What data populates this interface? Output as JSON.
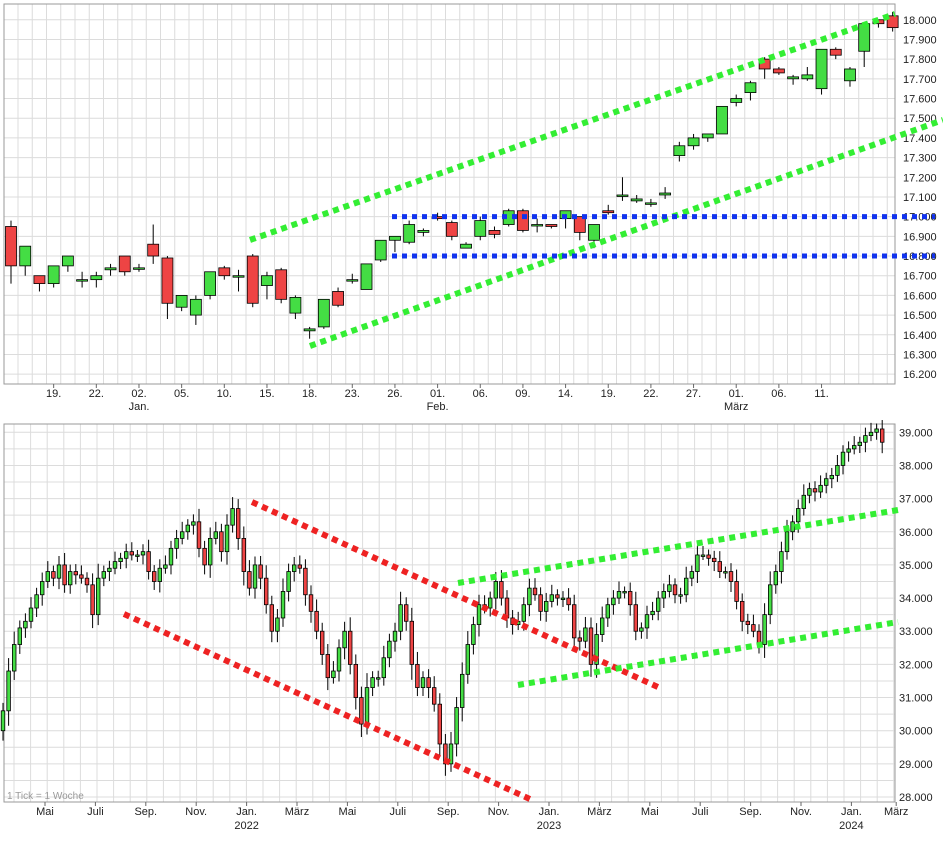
{
  "chart_data": [
    {
      "type": "candlestick",
      "title": "",
      "ylim": [
        16150,
        18080
      ],
      "y_ticks": [
        16200,
        16300,
        16400,
        16500,
        16600,
        16700,
        16800,
        16900,
        17000,
        17100,
        17200,
        17300,
        17400,
        17500,
        17600,
        17700,
        17800,
        17900,
        18000
      ],
      "y_tick_labels": [
        "16.200",
        "16.300",
        "16.400",
        "16.500",
        "16.600",
        "16.700",
        "16.800",
        "16.900",
        "17.000",
        "17.100",
        "17.200",
        "17.300",
        "17.400",
        "17.500",
        "17.600",
        "17.700",
        "17.800",
        "17.900",
        "18.000"
      ],
      "x_ticks": [
        {
          "i": 3,
          "label": "19."
        },
        {
          "i": 6,
          "label": "22."
        },
        {
          "i": 9,
          "label": "02.",
          "sub": "Jan."
        },
        {
          "i": 12,
          "label": "05."
        },
        {
          "i": 15,
          "label": "10."
        },
        {
          "i": 18,
          "label": "15."
        },
        {
          "i": 21,
          "label": "18."
        },
        {
          "i": 24,
          "label": "23."
        },
        {
          "i": 27,
          "label": "26."
        },
        {
          "i": 30,
          "label": "01.",
          "sub": "Feb."
        },
        {
          "i": 33,
          "label": "06."
        },
        {
          "i": 36,
          "label": "09."
        },
        {
          "i": 39,
          "label": "14."
        },
        {
          "i": 42,
          "label": "19."
        },
        {
          "i": 45,
          "label": "22."
        },
        {
          "i": 48,
          "label": "27."
        },
        {
          "i": 51,
          "label": "01.",
          "sub": "März"
        },
        {
          "i": 54,
          "label": "06."
        },
        {
          "i": 57,
          "label": "11."
        }
      ],
      "candles": [
        [
          16950,
          16980,
          16660,
          16750
        ],
        [
          16750,
          16850,
          16700,
          16850
        ],
        [
          16700,
          16700,
          16620,
          16660
        ],
        [
          16660,
          16750,
          16640,
          16750
        ],
        [
          16750,
          16800,
          16720,
          16800
        ],
        [
          16680,
          16720,
          16640,
          16680
        ],
        [
          16680,
          16720,
          16640,
          16700
        ],
        [
          16730,
          16760,
          16700,
          16740
        ],
        [
          16800,
          16800,
          16700,
          16720
        ],
        [
          16740,
          16760,
          16720,
          16740
        ],
        [
          16860,
          16960,
          16760,
          16800
        ],
        [
          16790,
          16800,
          16480,
          16560
        ],
        [
          16540,
          16600,
          16520,
          16600
        ],
        [
          16500,
          16600,
          16450,
          16580
        ],
        [
          16600,
          16720,
          16580,
          16720
        ],
        [
          16740,
          16750,
          16680,
          16700
        ],
        [
          16700,
          16730,
          16620,
          16700
        ],
        [
          16800,
          16810,
          16540,
          16560
        ],
        [
          16650,
          16720,
          16580,
          16700
        ],
        [
          16730,
          16740,
          16560,
          16580
        ],
        [
          16510,
          16600,
          16480,
          16590
        ],
        [
          16420,
          16440,
          16380,
          16430
        ],
        [
          16440,
          16580,
          16430,
          16580
        ],
        [
          16620,
          16640,
          16540,
          16550
        ],
        [
          16680,
          16710,
          16660,
          16680
        ],
        [
          16630,
          16760,
          16630,
          16760
        ],
        [
          16780,
          16880,
          16770,
          16880
        ],
        [
          16880,
          16900,
          16820,
          16900
        ],
        [
          16870,
          16980,
          16860,
          16960
        ],
        [
          16920,
          16940,
          16900,
          16930
        ],
        [
          17000,
          17020,
          16980,
          16990
        ],
        [
          16970,
          16980,
          16880,
          16900
        ],
        [
          16840,
          16870,
          16840,
          16860
        ],
        [
          16900,
          17000,
          16880,
          16980
        ],
        [
          16930,
          16950,
          16890,
          16910
        ],
        [
          16960,
          17040,
          16950,
          17030
        ],
        [
          17030,
          17040,
          16920,
          16930
        ],
        [
          16960,
          16990,
          16920,
          16960
        ],
        [
          16960,
          16960,
          16940,
          16950
        ],
        [
          16990,
          17030,
          16940,
          17030
        ],
        [
          17000,
          17000,
          16880,
          16920
        ],
        [
          16880,
          16960,
          16840,
          16960
        ],
        [
          17030,
          17060,
          17010,
          17020
        ],
        [
          17110,
          17200,
          17080,
          17110
        ],
        [
          17080,
          17110,
          17070,
          17090
        ],
        [
          17070,
          17090,
          17050,
          17070
        ],
        [
          17110,
          17150,
          17090,
          17120
        ],
        [
          17310,
          17380,
          17280,
          17360
        ],
        [
          17360,
          17420,
          17340,
          17400
        ],
        [
          17400,
          17420,
          17380,
          17420
        ],
        [
          17420,
          17560,
          17420,
          17560
        ],
        [
          17580,
          17620,
          17560,
          17600
        ],
        [
          17630,
          17690,
          17590,
          17680
        ],
        [
          17800,
          17810,
          17700,
          17750
        ],
        [
          17750,
          17760,
          17720,
          17730
        ],
        [
          17700,
          17720,
          17670,
          17710
        ],
        [
          17700,
          17760,
          17690,
          17720
        ],
        [
          17650,
          17850,
          17620,
          17850
        ],
        [
          17850,
          17860,
          17800,
          17820
        ],
        [
          17690,
          17760,
          17660,
          17750
        ],
        [
          17840,
          17980,
          17760,
          17980
        ],
        [
          18000,
          18000,
          17960,
          17980
        ],
        [
          18020,
          18040,
          17940,
          17960
        ]
      ]
    },
    {
      "type": "candlestick",
      "title": "",
      "ylim": [
        27850,
        39250
      ],
      "y_ticks": [
        28000,
        29000,
        30000,
        31000,
        32000,
        33000,
        34000,
        35000,
        36000,
        37000,
        38000,
        39000
      ],
      "y_tick_labels": [
        "28.000",
        "29.000",
        "30.000",
        "31.000",
        "32.000",
        "33.000",
        "34.000",
        "35.000",
        "36.000",
        "37.000",
        "38.000",
        "39.000"
      ],
      "x_ticks": [
        {
          "w": 4,
          "label": "Mai"
        },
        {
          "w": 13,
          "label": "Juli"
        },
        {
          "w": 22,
          "label": "Sep."
        },
        {
          "w": 31,
          "label": "Nov."
        },
        {
          "w": 40,
          "label": "Jan.",
          "sub": "2022"
        },
        {
          "w": 49,
          "label": "März"
        },
        {
          "w": 58,
          "label": "Mai"
        },
        {
          "w": 67,
          "label": "Juli"
        },
        {
          "w": 76,
          "label": "Sep."
        },
        {
          "w": 85,
          "label": "Nov."
        },
        {
          "w": 94,
          "label": "Jan.",
          "sub": "2023"
        },
        {
          "w": 103,
          "label": "März"
        },
        {
          "w": 112,
          "label": "Mai"
        },
        {
          "w": 121,
          "label": "Juli"
        },
        {
          "w": 130,
          "label": "Sep."
        },
        {
          "w": 139,
          "label": "Nov."
        },
        {
          "w": 148,
          "label": "Jan.",
          "sub": "2024"
        },
        {
          "w": 156,
          "label": "März"
        }
      ],
      "note": "1 Tick = 1 Woche",
      "closes": [
        30600,
        31800,
        32600,
        33100,
        33300,
        33700,
        34100,
        34500,
        34800,
        34600,
        35000,
        34400,
        34800,
        34700,
        34600,
        34400,
        33500,
        34600,
        34800,
        34900,
        35100,
        35200,
        35400,
        35300,
        35300,
        35400,
        34800,
        34500,
        34900,
        35000,
        35500,
        35800,
        36000,
        36200,
        36300,
        35500,
        35000,
        35800,
        36000,
        35400,
        36200,
        36700,
        35800,
        34800,
        34300,
        35000,
        34600,
        33800,
        33000,
        33400,
        34200,
        34800,
        35000,
        34900,
        34100,
        33600,
        33000,
        32300,
        31600,
        31800,
        32500,
        33000,
        32000,
        31000,
        30200,
        31300,
        31600,
        31600,
        32200,
        32700,
        33000,
        33800,
        33300,
        32000,
        31300,
        31600,
        31300,
        30800,
        29600,
        29000,
        29600,
        30700,
        31700,
        32600,
        33200,
        33800,
        33700,
        34000,
        34500,
        34000,
        33400,
        33200,
        33300,
        33800,
        34300,
        34100,
        33600,
        33900,
        34100,
        34000,
        34000,
        33800,
        32800,
        32700,
        33100,
        32000,
        32900,
        33400,
        33800,
        34000,
        34200,
        34200,
        33800,
        33000,
        33100,
        33500,
        33600,
        34000,
        34200,
        34400,
        34100,
        34100,
        34600,
        34800,
        35300,
        35300,
        35200,
        35100,
        34800,
        34800,
        34500,
        33900,
        33300,
        33200,
        33000,
        32600,
        33500,
        34400,
        34800,
        35400,
        36000,
        36300,
        36700,
        37100,
        37300,
        37200,
        37400,
        37600,
        37700,
        38000,
        38400,
        38500,
        38600,
        38700,
        38900,
        39000,
        39100,
        38700
      ]
    }
  ]
}
